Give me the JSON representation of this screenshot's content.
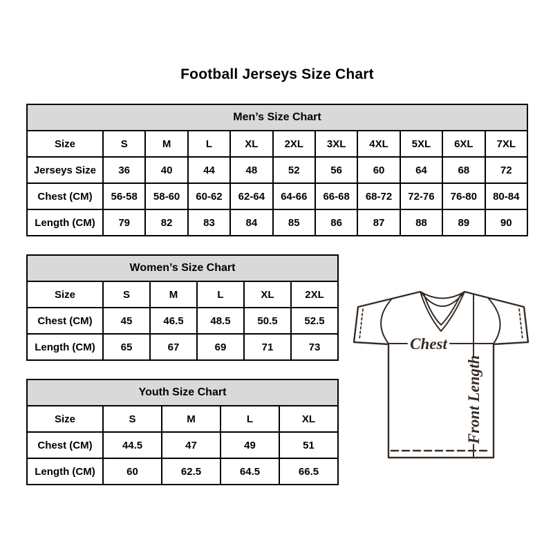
{
  "page": {
    "title": "Football Jerseys Size Chart"
  },
  "tables": {
    "men": {
      "header": "Men’s Size Chart",
      "rows": [
        [
          "Size",
          "S",
          "M",
          "L",
          "XL",
          "2XL",
          "3XL",
          "4XL",
          "5XL",
          "6XL",
          "7XL"
        ],
        [
          "Jerseys Size",
          "36",
          "40",
          "44",
          "48",
          "52",
          "56",
          "60",
          "64",
          "68",
          "72"
        ],
        [
          "Chest (CM)",
          "56-58",
          "58-60",
          "60-62",
          "62-64",
          "64-66",
          "66-68",
          "68-72",
          "72-76",
          "76-80",
          "80-84"
        ],
        [
          "Length (CM)",
          "79",
          "82",
          "83",
          "84",
          "85",
          "86",
          "87",
          "88",
          "89",
          "90"
        ]
      ]
    },
    "women": {
      "header": "Women’s Size Chart",
      "rows": [
        [
          "Size",
          "S",
          "M",
          "L",
          "XL",
          "2XL"
        ],
        [
          "Chest (CM)",
          "45",
          "46.5",
          "48.5",
          "50.5",
          "52.5"
        ],
        [
          "Length (CM)",
          "65",
          "67",
          "69",
          "71",
          "73"
        ]
      ]
    },
    "youth": {
      "header": "Youth Size Chart",
      "rows": [
        [
          "Size",
          "S",
          "M",
          "L",
          "XL"
        ],
        [
          "Chest (CM)",
          "44.5",
          "47",
          "49",
          "51"
        ],
        [
          "Length (CM)",
          "60",
          "62.5",
          "64.5",
          "66.5"
        ]
      ]
    }
  },
  "diagram": {
    "chest_label": "Chest",
    "front_length_label": "Front Length"
  },
  "colors": {
    "text": "#000000",
    "border": "#000000",
    "header_bg": "#d9d9d9",
    "jersey_line": "#362b25"
  }
}
